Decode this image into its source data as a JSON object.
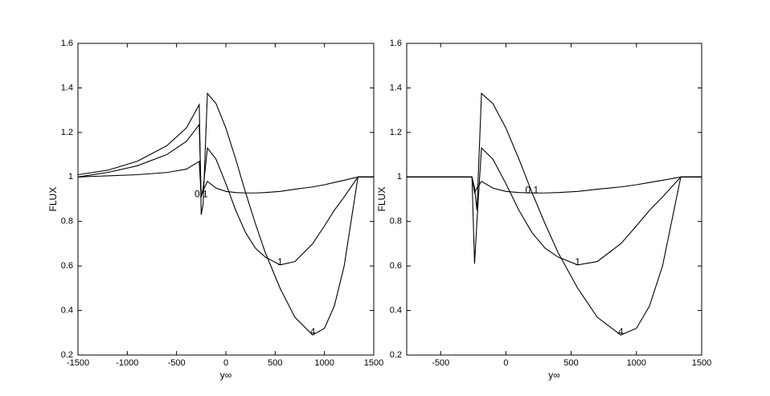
{
  "chart_data": [
    {
      "type": "line",
      "ylabel": "FLUX",
      "xlabel": "y∞",
      "x": [
        -1500,
        -1200,
        -900,
        -600,
        -400,
        -270,
        -250,
        -230,
        -187,
        -100,
        0,
        100,
        200,
        300,
        400,
        550,
        700,
        880,
        1000,
        1100,
        1200,
        1340,
        1500
      ],
      "series": [
        {
          "name": "4",
          "color": "#000000",
          "values": [
            1.01,
            1.03,
            1.07,
            1.14,
            1.22,
            1.325,
            0.83,
            0.88,
            1.375,
            1.33,
            1.22,
            1.08,
            0.93,
            0.79,
            0.66,
            0.5,
            0.37,
            0.29,
            0.32,
            0.42,
            0.6,
            1.0,
            1.0
          ]
        },
        {
          "name": "1",
          "color": "#000000",
          "values": [
            1.0,
            1.02,
            1.05,
            1.1,
            1.16,
            1.235,
            0.91,
            0.95,
            1.13,
            1.08,
            0.97,
            0.85,
            0.75,
            0.68,
            0.64,
            0.605,
            0.62,
            0.7,
            0.78,
            0.85,
            0.91,
            1.0,
            1.0
          ]
        },
        {
          "name": "0.1",
          "color": "#000000",
          "values": [
            1.0,
            1.005,
            1.01,
            1.02,
            1.035,
            1.07,
            0.91,
            0.94,
            0.98,
            0.95,
            0.935,
            0.93,
            0.928,
            0.928,
            0.93,
            0.935,
            0.945,
            0.955,
            0.965,
            0.975,
            0.985,
            1.0,
            1.0
          ]
        }
      ],
      "xlim": [
        -1500,
        1500
      ],
      "xticks": [
        -1500,
        -1000,
        -500,
        0,
        500,
        1000,
        1500
      ],
      "ylim": [
        0.2,
        1.6
      ],
      "yticks": [
        0.2,
        0.4,
        0.6,
        0.8,
        1,
        1.2,
        1.4,
        1.6
      ]
    },
    {
      "type": "line",
      "ylabel": "FLUX",
      "xlabel": "y∞",
      "x": [
        -760,
        -500,
        -260,
        -240,
        -222,
        -187,
        -100,
        0,
        100,
        200,
        300,
        400,
        550,
        700,
        880,
        1000,
        1100,
        1200,
        1340,
        1500
      ],
      "series": [
        {
          "name": "4",
          "color": "#000000",
          "values": [
            1,
            1,
            1,
            0.95,
            0.85,
            1.375,
            1.33,
            1.22,
            1.08,
            0.93,
            0.79,
            0.66,
            0.5,
            0.37,
            0.29,
            0.32,
            0.42,
            0.6,
            1.0,
            1.0
          ]
        },
        {
          "name": "1",
          "color": "#000000",
          "values": [
            1,
            1,
            1,
            0.61,
            0.8,
            1.13,
            1.08,
            0.97,
            0.85,
            0.75,
            0.68,
            0.64,
            0.605,
            0.62,
            0.7,
            0.78,
            0.85,
            0.91,
            1.0,
            1.0
          ]
        },
        {
          "name": "0.1",
          "color": "#000000",
          "values": [
            1,
            1,
            1,
            0.93,
            0.95,
            0.98,
            0.95,
            0.935,
            0.93,
            0.928,
            0.928,
            0.93,
            0.935,
            0.945,
            0.955,
            0.965,
            0.975,
            0.985,
            1.0,
            1.0
          ]
        }
      ],
      "xlim": [
        -760,
        1500
      ],
      "xticks": [
        -500,
        0,
        500,
        1000,
        1500
      ],
      "ylim": [
        0.2,
        1.6
      ],
      "yticks": [
        0.2,
        0.4,
        0.6,
        0.8,
        1,
        1.2,
        1.4,
        1.6
      ]
    }
  ]
}
